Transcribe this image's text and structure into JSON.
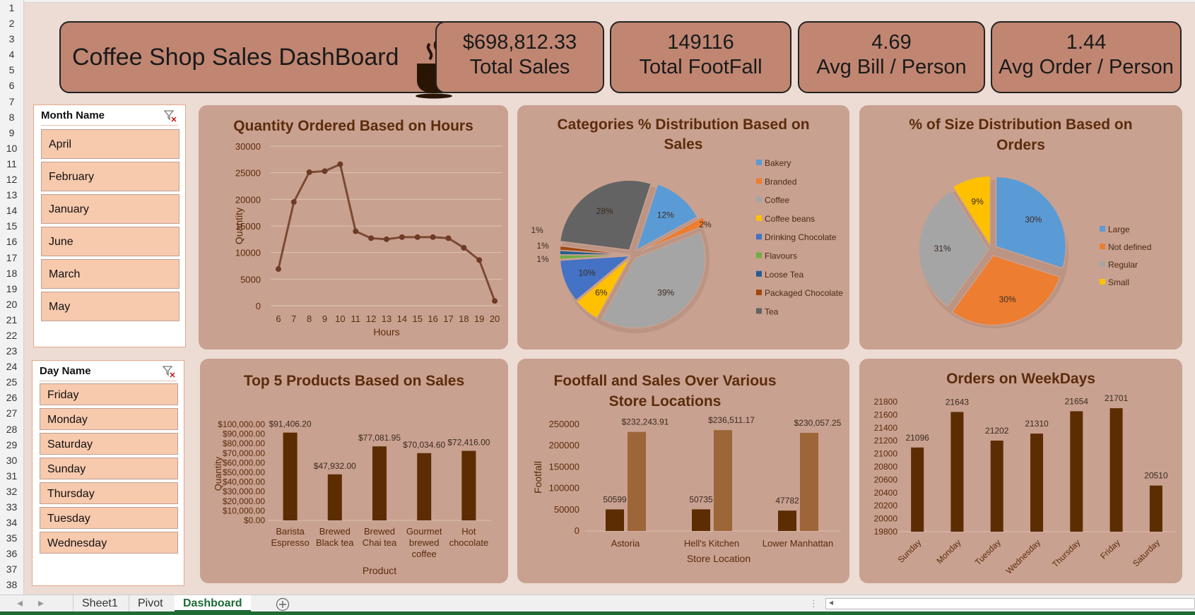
{
  "row_numbers": [
    "1",
    "2",
    "3",
    "4",
    "5",
    "6",
    "7",
    "8",
    "9",
    "10",
    "11",
    "12",
    "13",
    "14",
    "15",
    "16",
    "17",
    "18",
    "19",
    "20",
    "21",
    "22",
    "23",
    "24",
    "25",
    "26",
    "27",
    "28",
    "29",
    "30",
    "31",
    "32",
    "33",
    "34",
    "35",
    "36",
    "37",
    "38"
  ],
  "dashboard": {
    "title": "Coffee Shop Sales DashBoard"
  },
  "kpis": [
    {
      "value": "$698,812.33",
      "label": "Total Sales"
    },
    {
      "value": "149116",
      "label": "Total FootFall"
    },
    {
      "value": "4.69",
      "label": "Avg Bill / Person"
    },
    {
      "value": "1.44",
      "label": "Avg Order / Person"
    }
  ],
  "slicers": {
    "month": {
      "header": "Month Name",
      "items": [
        "April",
        "February",
        "January",
        "June",
        "March",
        "May"
      ]
    },
    "day": {
      "header": "Day Name",
      "items": [
        "Friday",
        "Monday",
        "Saturday",
        "Sunday",
        "Thursday",
        "Tuesday",
        "Wednesday"
      ]
    }
  },
  "charts": {
    "hours": {
      "title": "Quantity Ordered Based on Hours",
      "xlabel": "Hours",
      "ylabel": "Quantity",
      "yticks": [
        "0",
        "5000",
        "10000",
        "15000",
        "20000",
        "25000",
        "30000"
      ]
    },
    "categories": {
      "title_line1": "Categories % Distribution Based on",
      "title_line2": "Sales"
    },
    "sizes": {
      "title_line1": "% of Size Distribution Based on",
      "title_line2": "Orders"
    },
    "products": {
      "title": "Top 5 Products Based on Sales",
      "xlabel": "Product",
      "ylabel": "Quantity",
      "yticks": [
        "$0.00",
        "$10,000.00",
        "$20,000.00",
        "$30,000.00",
        "$40,000.00",
        "$50,000.00",
        "$60,000.00",
        "$70,000.00",
        "$80,000.00",
        "$90,000.00",
        "$100,000.00"
      ]
    },
    "footfall": {
      "title_line1": "Footfall and Sales  Over Various",
      "title_line2": "Store Locations",
      "xlabel": "Store Location",
      "ylabel": "Footfall",
      "yticks": [
        "0",
        "50000",
        "100000",
        "150000",
        "200000",
        "250000"
      ]
    },
    "weekdays": {
      "title": "Orders on WeekDays",
      "yticks": [
        "19800",
        "20000",
        "20200",
        "20400",
        "20600",
        "20800",
        "21000",
        "21200",
        "21400",
        "21600",
        "21800"
      ]
    }
  },
  "chart_data": [
    {
      "type": "line",
      "title": "Quantity Ordered Based on Hours",
      "xlabel": "Hours",
      "ylabel": "Quantity",
      "x": [
        6,
        7,
        8,
        9,
        10,
        11,
        12,
        13,
        14,
        15,
        16,
        17,
        18,
        19,
        20
      ],
      "values": [
        6900,
        19500,
        25100,
        25300,
        26600,
        14000,
        12700,
        12500,
        12900,
        12900,
        12900,
        12700,
        10900,
        8600,
        900
      ],
      "ylim": [
        0,
        30000
      ]
    },
    {
      "type": "pie",
      "title": "Categories % Distribution Based on Sales",
      "categories": [
        "Bakery",
        "Branded",
        "Coffee",
        "Coffee beans",
        "Drinking Chocolate",
        "Flavours",
        "Loose Tea",
        "Packaged Chocolate",
        "Tea"
      ],
      "values": [
        12,
        2,
        39,
        6,
        10,
        1,
        1,
        1,
        28
      ],
      "labels": [
        "12%",
        "2%",
        "39%",
        "6%",
        "10%",
        "1%",
        "1%",
        "1%",
        "28%"
      ],
      "colors": [
        "#5b9bd5",
        "#ed7d31",
        "#a5a5a5",
        "#ffc000",
        "#4472c4",
        "#70ad47",
        "#255e91",
        "#9e480e",
        "#636363"
      ],
      "legend": "right"
    },
    {
      "type": "pie",
      "title": "% of Size Distribution Based on Orders",
      "categories": [
        "Large",
        "Not defined",
        "Regular",
        "Small"
      ],
      "values": [
        30,
        30,
        31,
        9
      ],
      "labels": [
        "30%",
        "30%",
        "31%",
        "9%"
      ],
      "colors": [
        "#5b9bd5",
        "#ed7d31",
        "#a5a5a5",
        "#ffc000"
      ],
      "legend": "right"
    },
    {
      "type": "bar",
      "title": "Top 5 Products Based on Sales",
      "xlabel": "Product",
      "ylabel": "Quantity",
      "categories": [
        "Barista Espresso",
        "Brewed Black tea",
        "Brewed Chai tea",
        "Gourmet brewed coffee",
        "Hot chocolate"
      ],
      "category_lines": [
        [
          "Barista",
          "Espresso"
        ],
        [
          "Brewed",
          "Black tea"
        ],
        [
          "Brewed",
          "Chai tea"
        ],
        [
          "Gourmet",
          "brewed",
          "coffee"
        ],
        [
          "Hot",
          "chocolate"
        ]
      ],
      "values": [
        91406.2,
        47932.0,
        77081.95,
        70034.6,
        72416.0
      ],
      "labels": [
        "$91,406.20",
        "$47,932.00",
        "$77,081.95",
        "$70,034.60",
        "$72,416.00"
      ],
      "ylim": [
        0,
        100000
      ]
    },
    {
      "type": "bar",
      "title": "Footfall and Sales  Over Various Store Locations",
      "xlabel": "Store Location",
      "ylabel": "Footfall",
      "categories": [
        "Astoria",
        "Hell's Kitchen",
        "Lower Manhattan"
      ],
      "series": [
        {
          "values": [
            50599,
            50735,
            47782
          ],
          "labels": [
            "50599",
            "50735",
            "47782"
          ],
          "color": "#5c2c02"
        },
        {
          "values": [
            232243.91,
            236511.17,
            230057.25
          ],
          "labels": [
            "$232,243.91",
            "$236,511.17",
            "$230,057.25"
          ],
          "color": "#9c6638"
        }
      ],
      "ylim": [
        0,
        250000
      ]
    },
    {
      "type": "bar",
      "title": "Orders on WeekDays",
      "categories": [
        "Sunday",
        "Monday",
        "Tuesday",
        "Wednesday",
        "Thursday",
        "Friday",
        "Saturday"
      ],
      "values": [
        21096,
        21643,
        21202,
        21310,
        21654,
        21701,
        20510
      ],
      "labels": [
        "21096",
        "21643",
        "21202",
        "21310",
        "21654",
        "21701",
        "20510"
      ],
      "ylim": [
        19800,
        21800
      ]
    }
  ],
  "tabs": [
    "Sheet1",
    "Pivot",
    "Dashboard"
  ],
  "colors": {
    "bar_dark": "#5c2c02",
    "bar_light": "#9c6638",
    "line": "#7a4a35",
    "title": "#5b2c0c"
  }
}
